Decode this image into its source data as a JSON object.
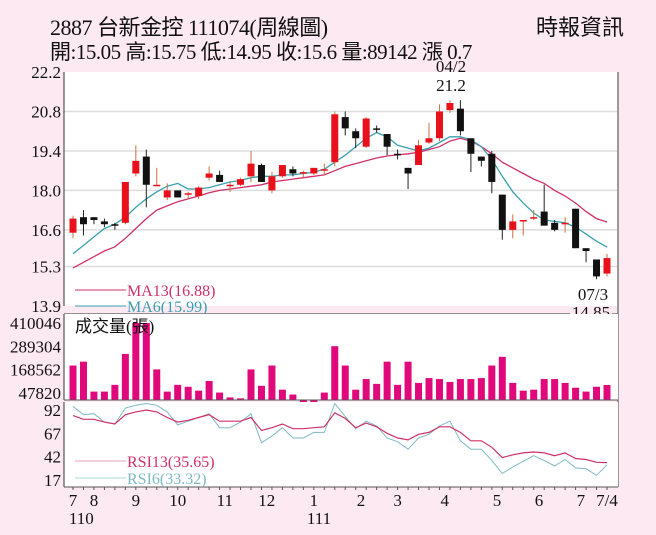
{
  "header": {
    "title": "2887  台新金控 111074(周線圖)",
    "ohlc": "開:15.05 高:15.75 低:14.95 收:15.6 量:89142 漲 0.7",
    "source": "時報資訊"
  },
  "colors": {
    "up": "#e8101a",
    "down": "#111111",
    "ma13": "#d0306a",
    "ma6": "#3a9fae",
    "volume": "#e0087a",
    "rsi13": "#d0306a",
    "rsi6": "#7fbac4",
    "grid": "#dddddd",
    "background": "#fce9f1"
  },
  "chart_data": [
    {
      "type": "candlestick",
      "title": "2887 台新金控 111074(周線圖)",
      "ylabel": "Price",
      "ylim": [
        13.9,
        22.2
      ],
      "yticks": [
        22.2,
        20.8,
        19.4,
        18.0,
        16.6,
        15.3,
        13.9
      ],
      "annotations": [
        {
          "label": "04/2",
          "value": "21.2",
          "type": "high"
        },
        {
          "label": "07/3",
          "value": "14.85",
          "type": "low"
        }
      ],
      "legend": [
        {
          "name": "MA13(16.88)",
          "color": "#d0306a"
        },
        {
          "name": "MA6(15.99)",
          "color": "#3a9fae"
        }
      ],
      "candles": [
        {
          "o": 16.5,
          "h": 17.1,
          "l": 16.3,
          "c": 17.0
        },
        {
          "o": 17.05,
          "h": 17.3,
          "l": 16.4,
          "c": 16.8
        },
        {
          "o": 17.05,
          "h": 17.05,
          "l": 16.8,
          "c": 16.95
        },
        {
          "o": 16.9,
          "h": 17.0,
          "l": 16.7,
          "c": 16.8
        },
        {
          "o": 16.8,
          "h": 16.85,
          "l": 16.6,
          "c": 16.75
        },
        {
          "o": 16.85,
          "h": 18.3,
          "l": 16.8,
          "c": 18.3
        },
        {
          "o": 18.6,
          "h": 19.6,
          "l": 18.5,
          "c": 19.05
        },
        {
          "o": 19.2,
          "h": 19.45,
          "l": 17.4,
          "c": 18.2
        },
        {
          "o": 18.15,
          "h": 18.8,
          "l": 18.15,
          "c": 18.2
        },
        {
          "o": 17.75,
          "h": 18.25,
          "l": 17.65,
          "c": 18.0
        },
        {
          "o": 18.0,
          "h": 18.0,
          "l": 17.75,
          "c": 17.75
        },
        {
          "o": 17.85,
          "h": 17.95,
          "l": 17.7,
          "c": 17.9
        },
        {
          "o": 17.8,
          "h": 18.15,
          "l": 17.7,
          "c": 18.1
        },
        {
          "o": 18.45,
          "h": 18.85,
          "l": 18.35,
          "c": 18.6
        },
        {
          "o": 18.55,
          "h": 18.7,
          "l": 18.3,
          "c": 18.3
        },
        {
          "o": 18.2,
          "h": 18.3,
          "l": 17.95,
          "c": 18.2
        },
        {
          "o": 18.2,
          "h": 18.45,
          "l": 18.15,
          "c": 18.4
        },
        {
          "o": 18.5,
          "h": 19.4,
          "l": 18.3,
          "c": 18.95
        },
        {
          "o": 18.9,
          "h": 18.95,
          "l": 18.3,
          "c": 18.3
        },
        {
          "o": 18.0,
          "h": 18.65,
          "l": 17.9,
          "c": 18.5
        },
        {
          "o": 18.5,
          "h": 18.8,
          "l": 18.45,
          "c": 18.9
        },
        {
          "o": 18.75,
          "h": 18.85,
          "l": 18.5,
          "c": 18.6
        },
        {
          "o": 18.6,
          "h": 18.7,
          "l": 18.45,
          "c": 18.65
        },
        {
          "o": 18.6,
          "h": 18.8,
          "l": 18.55,
          "c": 18.8
        },
        {
          "o": 18.75,
          "h": 18.95,
          "l": 18.55,
          "c": 18.75
        },
        {
          "o": 19.0,
          "h": 20.8,
          "l": 18.85,
          "c": 20.7
        },
        {
          "o": 20.6,
          "h": 20.8,
          "l": 19.95,
          "c": 20.2
        },
        {
          "o": 20.1,
          "h": 20.2,
          "l": 19.5,
          "c": 19.85
        },
        {
          "o": 19.55,
          "h": 20.6,
          "l": 19.5,
          "c": 20.55
        },
        {
          "o": 20.2,
          "h": 20.3,
          "l": 20.05,
          "c": 20.15
        },
        {
          "o": 20.0,
          "h": 20.0,
          "l": 19.25,
          "c": 19.55
        },
        {
          "o": 19.3,
          "h": 19.45,
          "l": 19.1,
          "c": 19.25
        },
        {
          "o": 18.8,
          "h": 18.8,
          "l": 18.05,
          "c": 18.6
        },
        {
          "o": 18.9,
          "h": 19.8,
          "l": 18.9,
          "c": 19.6
        },
        {
          "o": 19.7,
          "h": 20.4,
          "l": 19.65,
          "c": 19.85
        },
        {
          "o": 19.85,
          "h": 21.05,
          "l": 19.75,
          "c": 20.8
        },
        {
          "o": 20.85,
          "h": 21.2,
          "l": 20.75,
          "c": 21.1
        },
        {
          "o": 20.9,
          "h": 21.2,
          "l": 19.95,
          "c": 20.1
        },
        {
          "o": 19.85,
          "h": 19.85,
          "l": 18.65,
          "c": 19.3
        },
        {
          "o": 19.2,
          "h": 19.2,
          "l": 18.85,
          "c": 19.05
        },
        {
          "o": 19.3,
          "h": 19.4,
          "l": 17.9,
          "c": 18.3
        },
        {
          "o": 17.85,
          "h": 17.85,
          "l": 16.25,
          "c": 16.6
        },
        {
          "o": 16.6,
          "h": 17.15,
          "l": 16.3,
          "c": 16.9
        },
        {
          "o": 16.95,
          "h": 16.95,
          "l": 16.4,
          "c": 16.95
        },
        {
          "o": 17.05,
          "h": 17.3,
          "l": 16.95,
          "c": 17.05
        },
        {
          "o": 17.25,
          "h": 18.2,
          "l": 16.85,
          "c": 16.75
        },
        {
          "o": 16.85,
          "h": 16.95,
          "l": 16.55,
          "c": 16.6
        },
        {
          "o": 16.85,
          "h": 17.05,
          "l": 16.5,
          "c": 16.85
        },
        {
          "o": 17.35,
          "h": 17.35,
          "l": 15.95,
          "c": 15.95
        },
        {
          "o": 15.95,
          "h": 15.95,
          "l": 15.45,
          "c": 15.85
        },
        {
          "o": 15.55,
          "h": 15.55,
          "l": 14.85,
          "c": 14.95
        },
        {
          "o": 15.05,
          "h": 15.75,
          "l": 14.95,
          "c": 15.6
        }
      ],
      "ma13": [
        15.25,
        15.45,
        15.65,
        15.85,
        16.0,
        16.3,
        16.65,
        17.0,
        17.3,
        17.45,
        17.6,
        17.7,
        17.8,
        17.92,
        18.0,
        18.05,
        18.1,
        18.15,
        18.2,
        18.3,
        18.35,
        18.4,
        18.45,
        18.5,
        18.55,
        18.7,
        18.85,
        18.95,
        19.05,
        19.15,
        19.22,
        19.26,
        19.3,
        19.35,
        19.45,
        19.55,
        19.75,
        19.85,
        19.75,
        19.55,
        19.3,
        19.0,
        18.8,
        18.6,
        18.4,
        18.25,
        18.0,
        17.8,
        17.55,
        17.25,
        17.0,
        16.88
      ],
      "ma6": [
        15.75,
        16.05,
        16.35,
        16.65,
        16.8,
        17.05,
        17.4,
        17.7,
        17.95,
        18.15,
        18.25,
        18.05,
        18.05,
        18.1,
        18.2,
        18.3,
        18.35,
        18.45,
        18.5,
        18.5,
        18.55,
        18.55,
        18.6,
        18.65,
        18.75,
        19.0,
        19.25,
        19.55,
        19.85,
        20.05,
        19.9,
        19.6,
        19.5,
        19.4,
        19.5,
        19.7,
        19.9,
        19.9,
        19.8,
        19.55,
        19.1,
        18.5,
        17.95,
        17.55,
        17.2,
        16.95,
        16.9,
        16.85,
        16.7,
        16.45,
        16.2,
        15.99
      ]
    },
    {
      "type": "bar",
      "title": "成交量(張)",
      "yticks": [
        410046,
        289304,
        168562,
        47820
      ],
      "values": [
        190000,
        210000,
        55000,
        55000,
        90000,
        250000,
        410046,
        410046,
        170000,
        55000,
        90000,
        80000,
        60000,
        110000,
        50000,
        25000,
        20000,
        170000,
        85000,
        190000,
        65000,
        40000,
        10000,
        10000,
        50000,
        290000,
        190000,
        65000,
        120000,
        95000,
        210000,
        90000,
        210000,
        100000,
        125000,
        120000,
        105000,
        120000,
        120000,
        125000,
        190000,
        235000,
        100000,
        60000,
        65000,
        120000,
        120000,
        100000,
        75000,
        55000,
        80000,
        89142
      ],
      "color": "#e0087a"
    },
    {
      "type": "line",
      "title": "RSI",
      "yticks": [
        92,
        67,
        42,
        17
      ],
      "legend": [
        {
          "name": "RSI13(35.65)",
          "color": "#d0306a"
        },
        {
          "name": "RSI6(33.32)",
          "color": "#7fbac4"
        }
      ],
      "series": [
        {
          "name": "RSI13",
          "values": [
            86,
            82,
            82,
            79,
            77,
            87,
            90,
            92,
            90,
            84,
            79,
            81,
            84,
            87,
            80,
            80,
            80,
            84,
            70,
            73,
            77,
            72,
            72,
            73,
            74,
            89,
            83,
            73,
            78,
            74,
            67,
            62,
            60,
            66,
            68,
            74,
            74,
            68,
            59,
            59,
            52,
            41,
            44,
            46,
            47,
            46,
            43,
            46,
            40,
            39,
            36,
            35.65
          ]
        },
        {
          "name": "RSI6",
          "values": [
            96,
            87,
            88,
            79,
            77,
            94,
            97,
            99,
            97,
            90,
            76,
            80,
            84,
            88,
            73,
            73,
            79,
            88,
            57,
            64,
            73,
            62,
            62,
            68,
            68,
            99,
            85,
            72,
            80,
            75,
            62,
            58,
            50,
            62,
            66,
            75,
            80,
            59,
            50,
            50,
            38,
            24,
            31,
            37,
            43,
            38,
            32,
            39,
            30,
            29,
            22,
            33.32
          ]
        }
      ]
    }
  ],
  "x_axis": {
    "labels": [
      {
        "text": "7",
        "idx": 0
      },
      {
        "text": "8",
        "idx": 2
      },
      {
        "text": "9",
        "idx": 6
      },
      {
        "text": "10",
        "idx": 10
      },
      {
        "text": "11",
        "idx": 14.5
      },
      {
        "text": "12",
        "idx": 18.5
      },
      {
        "text": "1",
        "idx": 23
      },
      {
        "text": "2",
        "idx": 27.5
      },
      {
        "text": "3",
        "idx": 31
      },
      {
        "text": "4",
        "idx": 35.5
      },
      {
        "text": "5",
        "idx": 40.5
      },
      {
        "text": "6",
        "idx": 44.5
      },
      {
        "text": "7",
        "idx": 48.5
      },
      {
        "text": "7/4",
        "idx": 51
      }
    ],
    "year_labels": [
      {
        "text": "110",
        "idx": 0.6
      },
      {
        "text": "111",
        "idx": 23.3
      }
    ]
  },
  "labels": {
    "volume_title": "成交量(張)",
    "high_date": "04/2",
    "high_value": "21.2",
    "low_date": "07/3",
    "low_value": "14.85",
    "ma13": "MA13(16.88)",
    "ma6": "MA6(15.99)",
    "rsi13": "RSI13(35.65)",
    "rsi6": "RSI6(33.32)"
  }
}
